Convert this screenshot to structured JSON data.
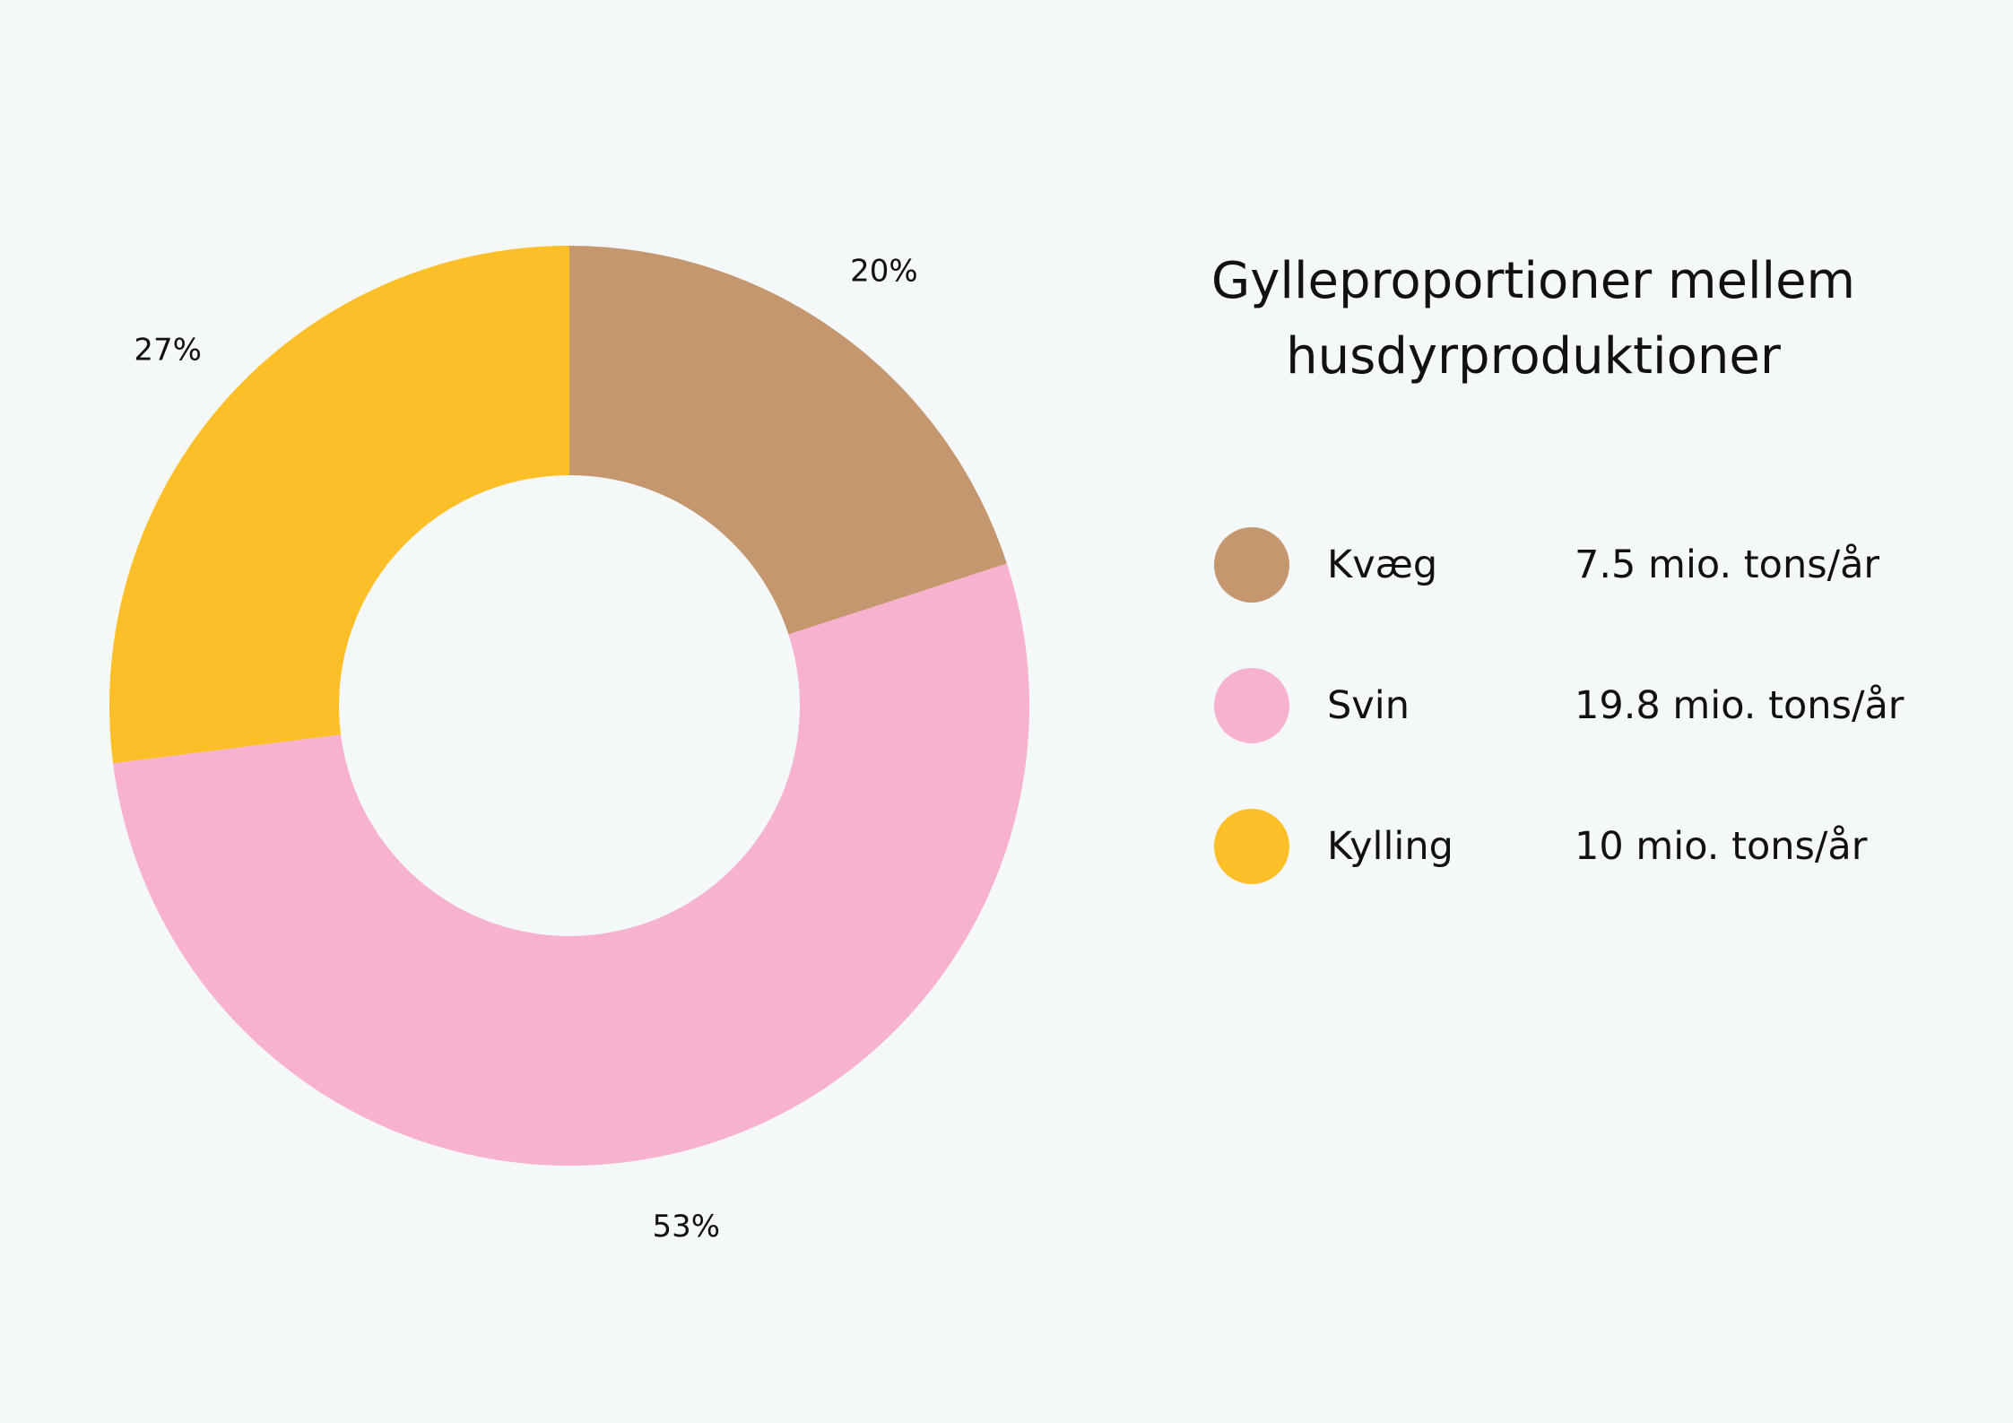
{
  "chart_data": {
    "type": "pie",
    "donut": true,
    "title": "Gylleproportioner mellem husdyrproduktioner",
    "title_lines": [
      "Gylleproportioner mellem",
      "husdyrproduktioner"
    ],
    "categories": [
      "Kvæg",
      "Svin",
      "Kylling"
    ],
    "values": [
      20,
      53,
      27
    ],
    "percent_labels": [
      "20%",
      "53%",
      "27%"
    ],
    "amount_labels": [
      "7.5 mio. tons/år",
      "19.8 mio. tons/år",
      "10 mio. tons/år"
    ],
    "colors": [
      "#c4976f",
      "#f6b2cf",
      "#fdbf28"
    ],
    "legend_position": "right",
    "start": "top, clockwise"
  }
}
